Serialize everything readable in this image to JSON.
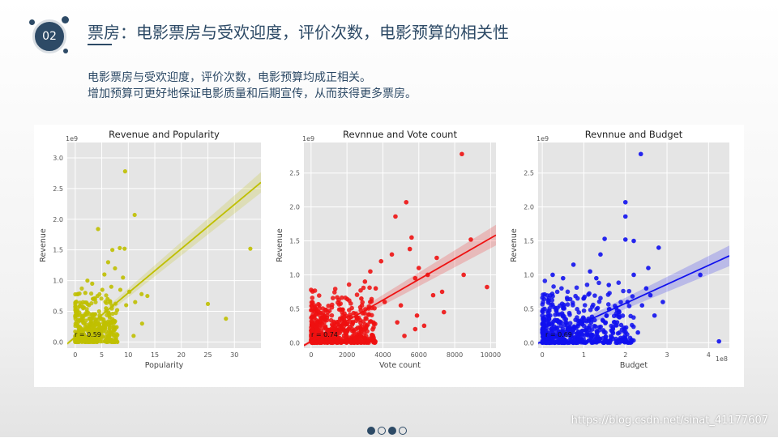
{
  "slide": {
    "number": "02",
    "title": "票房：电影票房与受欢迎度，评价次数，电影预算的相关性",
    "desc_line1": "电影票房与受欢迎度，评价次数，电影预算均成正相关。",
    "desc_line2": "增加预算可更好地保证电影质量和后期宣传，从而获得更多票房。",
    "watermark": "https://blog.csdn.net/sinat_41177607",
    "pager": [
      true,
      false,
      true,
      false
    ]
  },
  "chart_data": [
    {
      "type": "scatter",
      "title": "Revenue and Popularity",
      "xlabel": "Popularity",
      "ylabel": "Revenue",
      "y_exponent": "1e9",
      "x_exponent": "",
      "color": "#bfbf00",
      "xlim": [
        -1.5,
        35
      ],
      "ylim": [
        -0.1,
        3.25
      ],
      "xticks": [
        0,
        5,
        10,
        15,
        20,
        25,
        30
      ],
      "yticks": [
        0.0,
        0.5,
        1.0,
        1.5,
        2.0,
        2.5,
        3.0
      ],
      "annotation": "r = 0.59",
      "regression": {
        "intercept": 0.08,
        "slope": 0.072
      },
      "points": [
        [
          9.4,
          2.78
        ],
        [
          11.2,
          2.07
        ],
        [
          4.3,
          1.84
        ],
        [
          8.4,
          1.53
        ],
        [
          9.3,
          1.52
        ],
        [
          33.0,
          1.52
        ],
        [
          7.0,
          1.5
        ],
        [
          6.2,
          1.3
        ],
        [
          7.5,
          1.2
        ],
        [
          5.5,
          1.1
        ],
        [
          9.0,
          1.05
        ],
        [
          6.8,
          0.9
        ],
        [
          8.5,
          0.85
        ],
        [
          10.2,
          0.82
        ],
        [
          12.5,
          0.78
        ],
        [
          13.6,
          0.75
        ],
        [
          25.0,
          0.62
        ],
        [
          28.4,
          0.38
        ],
        [
          11.3,
          0.65
        ],
        [
          12.6,
          0.3
        ],
        [
          11.0,
          0.1
        ],
        [
          7.9,
          0.52
        ],
        [
          9.6,
          0.6
        ],
        [
          5.8,
          0.55
        ],
        [
          3.2,
          0.95
        ],
        [
          4.2,
          0.75
        ],
        [
          6.5,
          0.4
        ],
        [
          2.6,
          0.6
        ],
        [
          3.7,
          0.45
        ],
        [
          5.1,
          0.85
        ],
        [
          2.3,
          1.0
        ],
        [
          1.2,
          0.35
        ],
        [
          0.7,
          0.2
        ],
        [
          1.5,
          0.55
        ],
        [
          2.8,
          0.3
        ],
        [
          4.6,
          0.2
        ],
        [
          3.4,
          0.7
        ],
        [
          6.1,
          0.7
        ],
        [
          7.3,
          0.25
        ],
        [
          1.9,
          0.8
        ]
      ],
      "cluster": {
        "x": [
          0,
          8
        ],
        "y": [
          0,
          0.9
        ],
        "n": 420
      }
    },
    {
      "type": "scatter",
      "title": "Revnnue and Vote count",
      "xlabel": "Vote count",
      "ylabel": "Revenue",
      "y_exponent": "1e9",
      "x_exponent": "",
      "color": "#ee1111",
      "xlim": [
        -400,
        10300
      ],
      "ylim": [
        -0.08,
        2.95
      ],
      "xticks": [
        0,
        2000,
        4000,
        6000,
        8000,
        10000
      ],
      "yticks": [
        0.0,
        0.5,
        1.0,
        1.5,
        2.0,
        2.5
      ],
      "annotation": "r = 0.74",
      "regression": {
        "intercept": 0.02,
        "slope": 0.000152
      },
      "points": [
        [
          8400,
          2.78
        ],
        [
          5300,
          2.07
        ],
        [
          4700,
          1.86
        ],
        [
          5600,
          1.55
        ],
        [
          8900,
          1.52
        ],
        [
          5500,
          1.38
        ],
        [
          4500,
          1.3
        ],
        [
          7000,
          1.25
        ],
        [
          3900,
          1.2
        ],
        [
          6000,
          1.1
        ],
        [
          6500,
          1.0
        ],
        [
          8500,
          1.0
        ],
        [
          9800,
          0.82
        ],
        [
          5800,
          0.95
        ],
        [
          7300,
          0.75
        ],
        [
          6800,
          0.7
        ],
        [
          4100,
          0.6
        ],
        [
          5000,
          0.55
        ],
        [
          5900,
          0.4
        ],
        [
          7400,
          0.45
        ],
        [
          5200,
          0.1
        ],
        [
          5800,
          0.2
        ],
        [
          4800,
          0.3
        ],
        [
          3300,
          1.05
        ],
        [
          3000,
          0.9
        ],
        [
          3600,
          0.8
        ],
        [
          2800,
          0.65
        ],
        [
          6300,
          0.25
        ]
      ],
      "cluster": {
        "x": [
          0,
          3600
        ],
        "y": [
          0,
          0.9
        ],
        "n": 520
      }
    },
    {
      "type": "scatter",
      "title": "Revnnue and Budget",
      "xlabel": "Budget",
      "ylabel": "Revenue",
      "y_exponent": "1e9",
      "x_exponent": "1e8",
      "color": "#1010ee",
      "xlim": [
        -0.1,
        4.5
      ],
      "ylim": [
        -0.08,
        2.95
      ],
      "xticks": [
        0,
        1,
        2,
        3,
        4
      ],
      "yticks": [
        0.0,
        0.5,
        1.0,
        1.5,
        2.0,
        2.5
      ],
      "annotation": "r = 0.69",
      "regression": {
        "intercept": 0.02,
        "slope": 0.28
      },
      "points": [
        [
          2.37,
          2.78
        ],
        [
          2.0,
          2.07
        ],
        [
          2.0,
          1.86
        ],
        [
          1.5,
          1.53
        ],
        [
          2.0,
          1.52
        ],
        [
          2.2,
          1.5
        ],
        [
          2.8,
          1.4
        ],
        [
          1.4,
          1.3
        ],
        [
          3.8,
          1.0
        ],
        [
          4.25,
          0.02
        ],
        [
          2.5,
          0.8
        ],
        [
          2.6,
          0.7
        ],
        [
          2.7,
          0.4
        ],
        [
          2.4,
          0.55
        ],
        [
          2.2,
          1.0
        ],
        [
          2.05,
          0.6
        ],
        [
          1.85,
          0.45
        ],
        [
          1.8,
          0.3
        ],
        [
          2.9,
          0.6
        ],
        [
          2.55,
          1.1
        ],
        [
          1.3,
          0.95
        ],
        [
          1.6,
          0.85
        ],
        [
          1.15,
          1.05
        ],
        [
          0.75,
          1.15
        ],
        [
          0.5,
          0.95
        ],
        [
          1.7,
          0.2
        ],
        [
          2.3,
          0.15
        ],
        [
          0.25,
          1.0
        ]
      ],
      "cluster": {
        "x": [
          0,
          2.2
        ],
        "y": [
          0,
          0.95
        ],
        "n": 520
      }
    }
  ]
}
